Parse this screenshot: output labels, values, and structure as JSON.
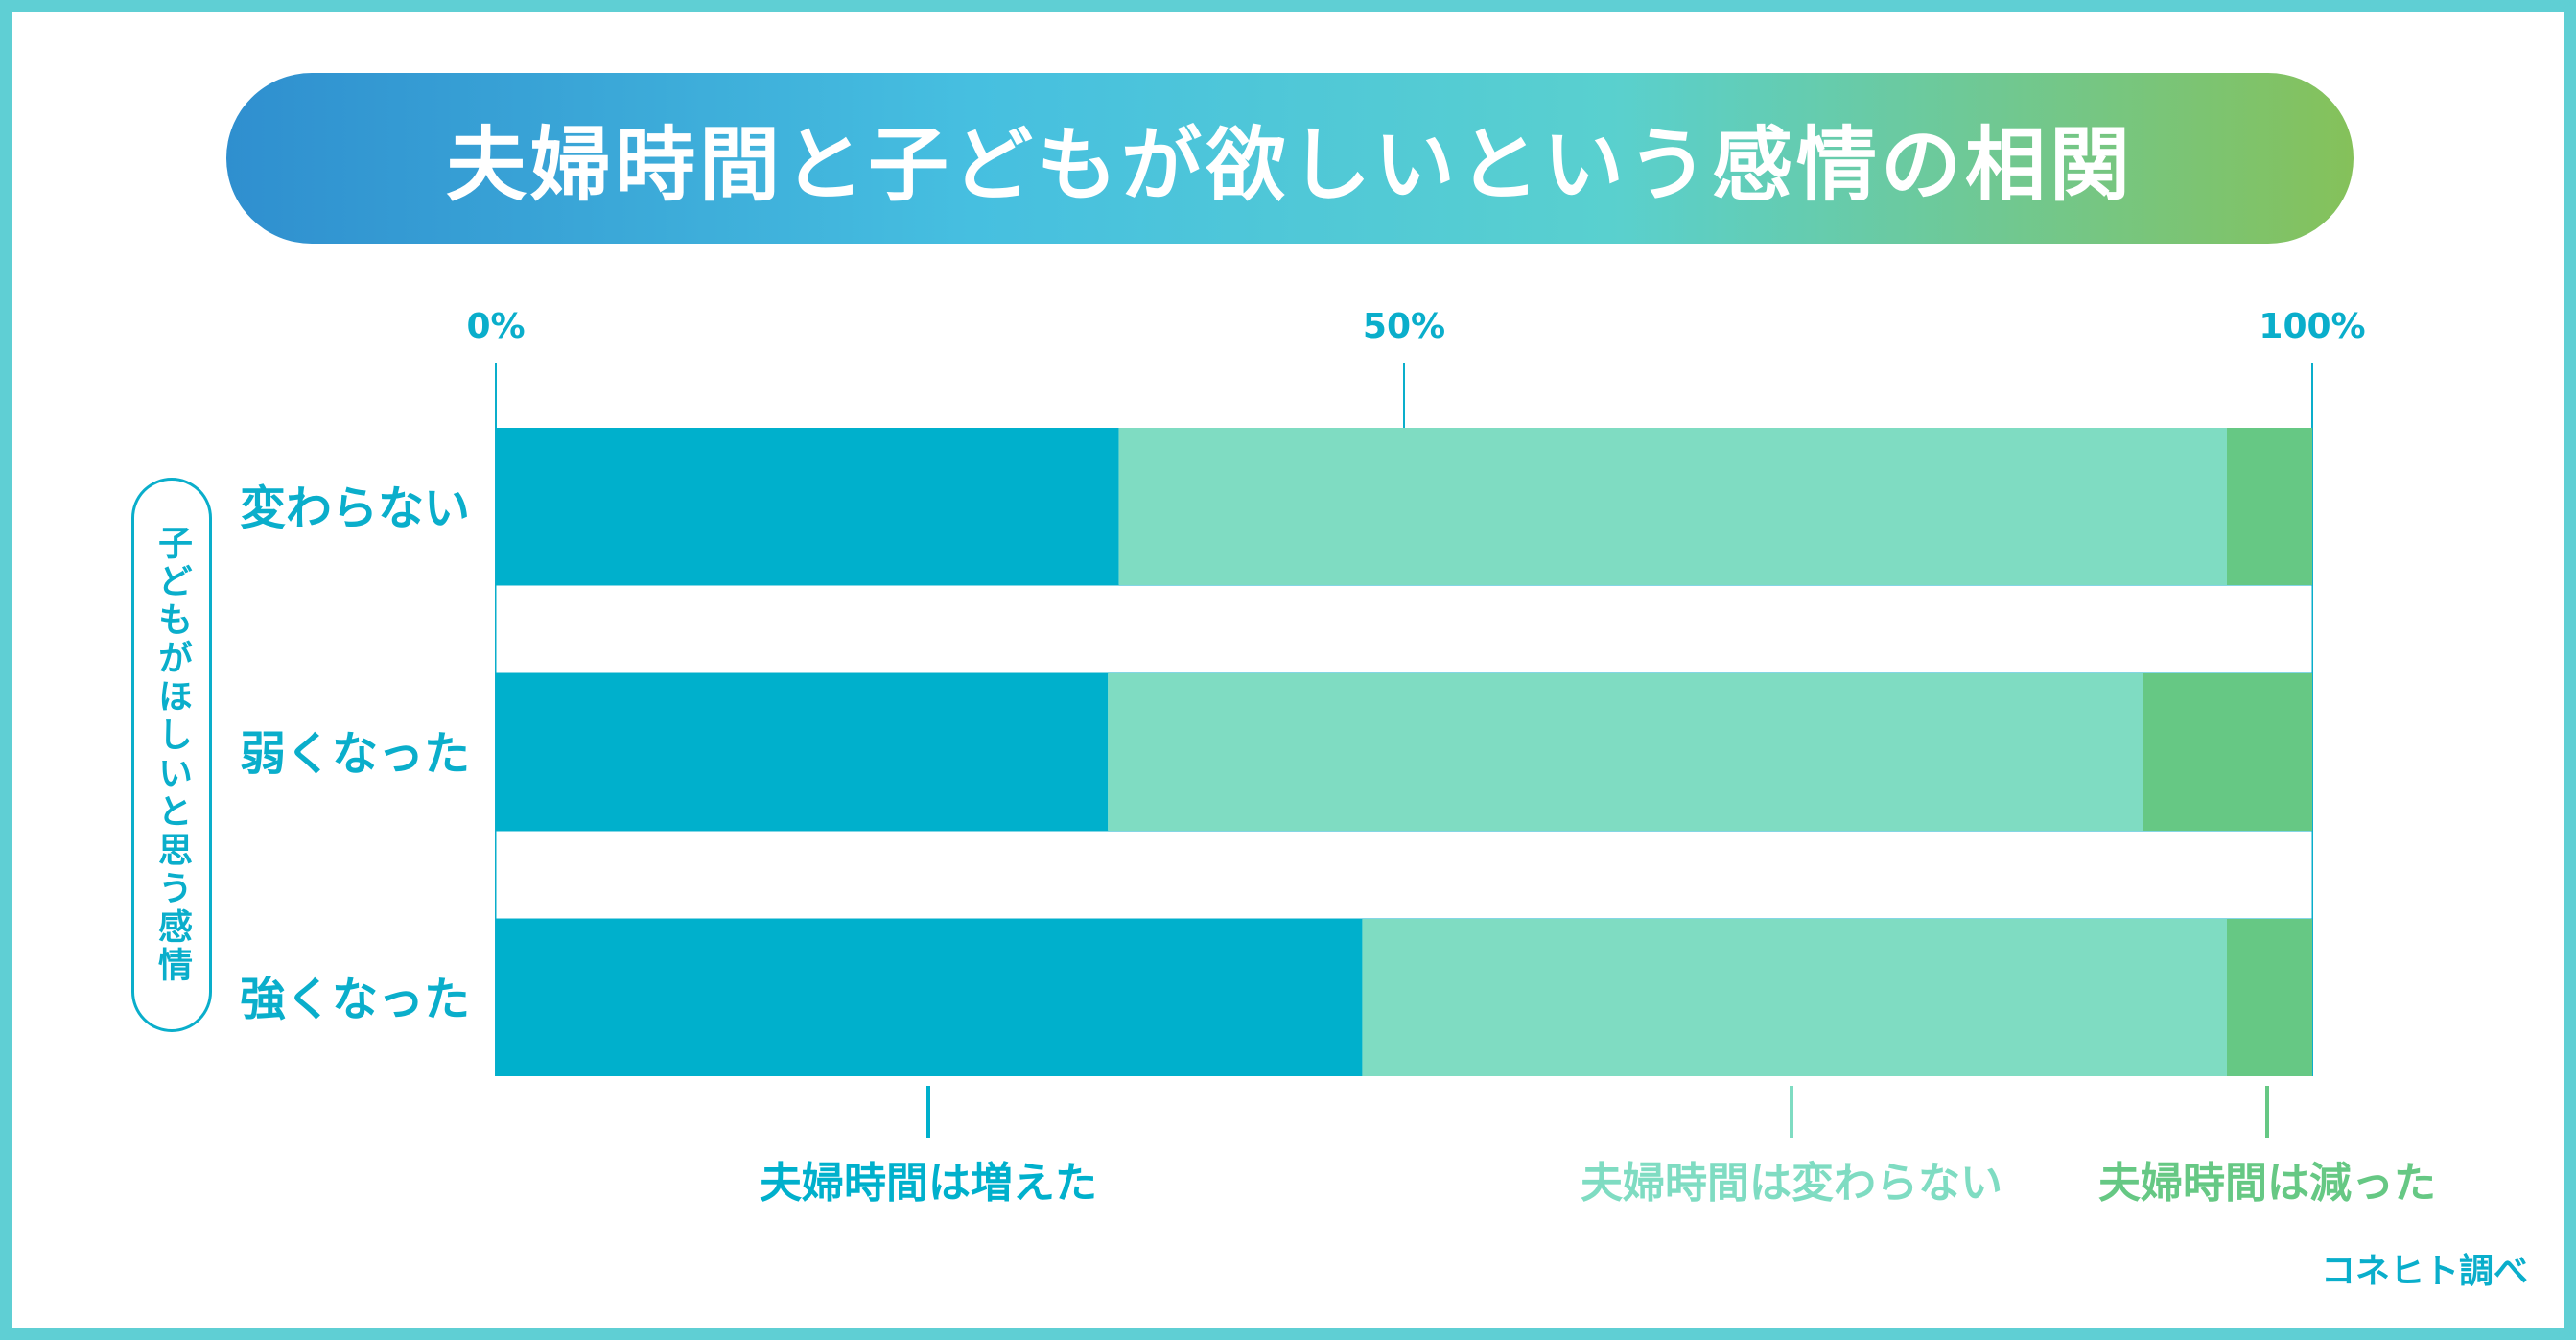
{
  "title": "夫婦時間と子どもが欲しいという感情の相関",
  "y_axis_label": "子どもがほしいと思う感情",
  "source": "コネヒト調べ",
  "colors": {
    "increased": "#00b0cc",
    "unchanged": "#7fdcc2",
    "decreased": "#66c884",
    "axis_text": "#0aaecb",
    "gridline": "#0aaecb",
    "frame": "#5fcfd4"
  },
  "chart_data": {
    "type": "bar",
    "orientation": "horizontal",
    "stacked": true,
    "percent_scale": true,
    "title": "夫婦時間と子どもが欲しいという感情の相関",
    "ylabel": "子どもがほしいと思う感情",
    "xlim": [
      0,
      100
    ],
    "x_ticks": [
      "0%",
      "50%",
      "100%"
    ],
    "categories": [
      "変わらない",
      "弱くなった",
      "強くなった"
    ],
    "series": [
      {
        "name": "夫婦時間は増えた",
        "values": [
          34.3,
          33.7,
          47.7
        ]
      },
      {
        "name": "夫婦時間は変わらない",
        "values": [
          61.0,
          57.0,
          47.6
        ]
      },
      {
        "name": "夫婦時間は減った",
        "values": [
          4.7,
          9.3,
          4.7
        ]
      }
    ],
    "grid": true,
    "legend_position": "bottom"
  }
}
